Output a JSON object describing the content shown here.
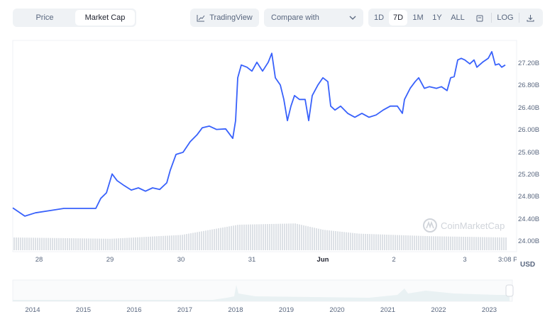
{
  "toolbar": {
    "tabs": [
      {
        "label": "Price",
        "active": false
      },
      {
        "label": "Market Cap",
        "active": true
      }
    ],
    "tradingview_label": "TradingView",
    "compare_label": "Compare with",
    "ranges": [
      {
        "label": "1D",
        "active": false
      },
      {
        "label": "7D",
        "active": true
      },
      {
        "label": "1M",
        "active": false
      },
      {
        "label": "1Y",
        "active": false
      },
      {
        "label": "ALL",
        "active": false
      }
    ],
    "log_label": "LOG"
  },
  "watermark": "CoinMarketCap",
  "currency": "USD",
  "chart_data": {
    "type": "line",
    "ylabel": "Market Cap (USD)",
    "y_ticks": [
      "27.20B",
      "26.80B",
      "26.40B",
      "26.00B",
      "25.60B",
      "25.20B",
      "24.80B",
      "24.40B",
      "24.00B"
    ],
    "ylim": [
      24.0,
      27.2
    ],
    "x_ticks": [
      {
        "label": "28",
        "day": 0
      },
      {
        "label": "29",
        "day": 1
      },
      {
        "label": "30",
        "day": 2
      },
      {
        "label": "31",
        "day": 3
      },
      {
        "label": "Jun",
        "day": 4
      },
      {
        "label": "2",
        "day": 5
      },
      {
        "label": "3",
        "day": 6
      },
      {
        "label": "3:08 PM",
        "day": 6.6
      }
    ],
    "xlim": [
      -0.37,
      6.57
    ],
    "color": "#3861fb",
    "series": [
      [
        -0.37,
        24.61
      ],
      [
        -0.2,
        24.46
      ],
      [
        -0.05,
        24.52
      ],
      [
        0.15,
        24.56
      ],
      [
        0.35,
        24.6
      ],
      [
        0.55,
        24.6
      ],
      [
        0.8,
        24.6
      ],
      [
        0.87,
        24.78
      ],
      [
        0.95,
        24.88
      ],
      [
        1.03,
        25.22
      ],
      [
        1.1,
        25.1
      ],
      [
        1.2,
        25.01
      ],
      [
        1.3,
        24.93
      ],
      [
        1.4,
        24.97
      ],
      [
        1.5,
        24.91
      ],
      [
        1.6,
        24.97
      ],
      [
        1.7,
        24.94
      ],
      [
        1.8,
        25.06
      ],
      [
        1.85,
        25.29
      ],
      [
        1.93,
        25.57
      ],
      [
        2.03,
        25.61
      ],
      [
        2.13,
        25.8
      ],
      [
        2.23,
        25.93
      ],
      [
        2.3,
        26.05
      ],
      [
        2.4,
        26.08
      ],
      [
        2.5,
        26.02
      ],
      [
        2.63,
        26.03
      ],
      [
        2.73,
        25.86
      ],
      [
        2.77,
        26.18
      ],
      [
        2.8,
        26.95
      ],
      [
        2.85,
        27.18
      ],
      [
        2.93,
        27.14
      ],
      [
        3.0,
        27.07
      ],
      [
        3.07,
        27.23
      ],
      [
        3.15,
        27.07
      ],
      [
        3.23,
        27.23
      ],
      [
        3.28,
        27.39
      ],
      [
        3.33,
        26.95
      ],
      [
        3.4,
        26.82
      ],
      [
        3.45,
        26.56
      ],
      [
        3.5,
        26.18
      ],
      [
        3.55,
        26.44
      ],
      [
        3.6,
        26.63
      ],
      [
        3.67,
        26.56
      ],
      [
        3.75,
        26.56
      ],
      [
        3.8,
        26.18
      ],
      [
        3.85,
        26.63
      ],
      [
        3.93,
        26.82
      ],
      [
        4.0,
        26.95
      ],
      [
        4.07,
        26.88
      ],
      [
        4.11,
        26.44
      ],
      [
        4.17,
        26.37
      ],
      [
        4.25,
        26.44
      ],
      [
        4.35,
        26.31
      ],
      [
        4.45,
        26.24
      ],
      [
        4.55,
        26.31
      ],
      [
        4.65,
        26.24
      ],
      [
        4.75,
        26.28
      ],
      [
        4.85,
        26.37
      ],
      [
        4.95,
        26.44
      ],
      [
        5.05,
        26.44
      ],
      [
        5.12,
        26.31
      ],
      [
        5.15,
        26.56
      ],
      [
        5.23,
        26.76
      ],
      [
        5.3,
        26.88
      ],
      [
        5.35,
        26.95
      ],
      [
        5.43,
        26.76
      ],
      [
        5.5,
        26.79
      ],
      [
        5.6,
        26.76
      ],
      [
        5.67,
        26.79
      ],
      [
        5.75,
        26.72
      ],
      [
        5.8,
        26.95
      ],
      [
        5.85,
        26.97
      ],
      [
        5.9,
        27.27
      ],
      [
        5.95,
        27.3
      ],
      [
        6.0,
        27.27
      ],
      [
        6.07,
        27.2
      ],
      [
        6.13,
        27.27
      ],
      [
        6.17,
        27.14
      ],
      [
        6.25,
        27.23
      ],
      [
        6.33,
        27.3
      ],
      [
        6.38,
        27.42
      ],
      [
        6.43,
        27.18
      ],
      [
        6.48,
        27.2
      ],
      [
        6.52,
        27.14
      ],
      [
        6.57,
        27.18
      ]
    ],
    "volume_relative": [
      [
        -0.37,
        0.5
      ],
      [
        1.0,
        0.45
      ],
      [
        2.0,
        0.6
      ],
      [
        2.8,
        1.0
      ],
      [
        3.6,
        1.05
      ],
      [
        4.0,
        0.8
      ],
      [
        4.5,
        0.65
      ],
      [
        5.5,
        0.55
      ],
      [
        6.57,
        0.5
      ]
    ]
  },
  "navigator": {
    "years": [
      "2014",
      "2015",
      "2016",
      "2017",
      "2018",
      "2019",
      "2020",
      "2021",
      "2022",
      "2023"
    ]
  }
}
